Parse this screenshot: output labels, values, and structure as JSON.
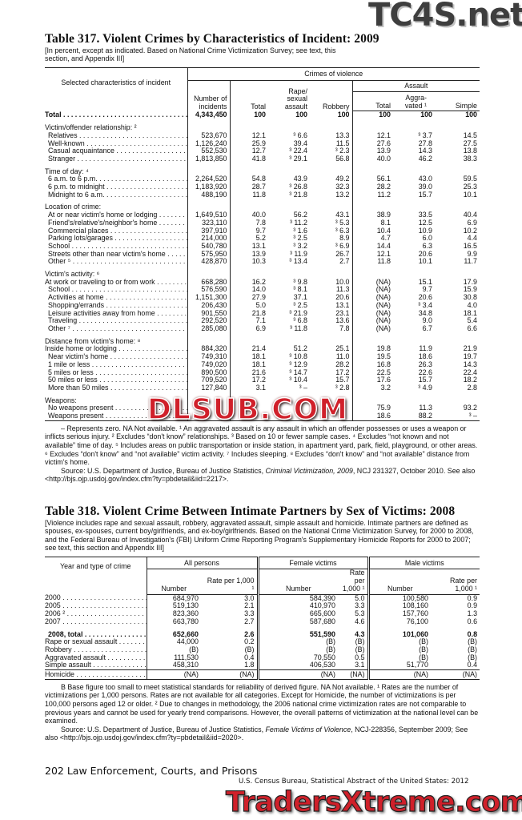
{
  "watermarks": {
    "top": "TC4S.net",
    "middle": "DLSUB.COM",
    "bottom": "TradersXtreme.com"
  },
  "table317": {
    "title": "Table 317. Violent Crimes by Characteristics of Incident: 2009",
    "headnote": "[In percent, except as indicated. Based on National Crime Victimization Survey; see text, this section, and Appendix III]",
    "headers": {
      "stub": "Selected characteristics of incident",
      "crimes_of_violence": "Crimes of violence",
      "assault": "Assault",
      "number_of_incidents": "Number of incidents",
      "total": "Total",
      "rape": "Rape/ sexual assault",
      "robbery": "Robbery",
      "assault_total": "Total",
      "aggravated": "Aggra- vated ¹",
      "simple": "Simple"
    },
    "rows": [
      {
        "label": "Total",
        "bold": true,
        "values": [
          "4,343,450",
          "100",
          "100",
          "100",
          "100",
          "100",
          "100"
        ]
      },
      {
        "gap": true
      },
      {
        "label": "Victim/offender relationship: ²",
        "heading": true
      },
      {
        "label": "Relatives",
        "indent": true,
        "values": [
          "523,670",
          "12.1",
          "³ 6.6",
          "13.3",
          "12.1",
          "³ 3.7",
          "14.5"
        ]
      },
      {
        "label": "Well-known",
        "indent": true,
        "values": [
          "1,126,240",
          "25.9",
          "39.4",
          "11.5",
          "27.6",
          "27.8",
          "27.5"
        ]
      },
      {
        "label": "Casual acquaintance",
        "indent": true,
        "values": [
          "552,530",
          "12.7",
          "³ 22.4",
          "³ 2.3",
          "13.9",
          "14.3",
          "13.8"
        ]
      },
      {
        "label": "Stranger",
        "indent": true,
        "values": [
          "1,813,850",
          "41.8",
          "³ 29.1",
          "56.8",
          "40.0",
          "46.2",
          "38.3"
        ]
      },
      {
        "gap": true
      },
      {
        "label": "Time of day: ⁴",
        "heading": true
      },
      {
        "label": "6 a.m. to 6 p.m.",
        "indent": true,
        "values": [
          "2,264,520",
          "54.8",
          "43.9",
          "49.2",
          "56.1",
          "43.0",
          "59.5"
        ]
      },
      {
        "label": "6 p.m. to midnight",
        "indent": true,
        "values": [
          "1,183,920",
          "28.7",
          "³ 26.8",
          "32.3",
          "28.2",
          "39.0",
          "25.3"
        ]
      },
      {
        "label": "Midnight to 6 a.m.",
        "indent": true,
        "values": [
          "488,190",
          "11.8",
          "³ 21.8",
          "13.2",
          "11.2",
          "15.7",
          "10.1"
        ]
      },
      {
        "gap": true
      },
      {
        "label": "Location of crime:",
        "heading": true
      },
      {
        "label": "At or near victim's home or lodging",
        "indent": true,
        "values": [
          "1,649,510",
          "40.0",
          "56.2",
          "43.1",
          "38.9",
          "33.5",
          "40.4"
        ]
      },
      {
        "label": "Friend's/relative's/neighbor's home",
        "indent": true,
        "values": [
          "323,110",
          "7.8",
          "³ 11.2",
          "³ 5.3",
          "8.1",
          "12.5",
          "6.9"
        ]
      },
      {
        "label": "Commercial places",
        "indent": true,
        "values": [
          "397,910",
          "9.7",
          "³ 1.6",
          "³ 6.3",
          "10.4",
          "10.9",
          "10.2"
        ]
      },
      {
        "label": "Parking lots/garages",
        "indent": true,
        "values": [
          "214,000",
          "5.2",
          "³ 2.5",
          "8.9",
          "4.7",
          "6.0",
          "4.4"
        ]
      },
      {
        "label": "School",
        "indent": true,
        "values": [
          "540,780",
          "13.1",
          "³ 3.2",
          "³ 6.9",
          "14.4",
          "6.3",
          "16.5"
        ]
      },
      {
        "label": "Streets other than near victim's home",
        "indent": true,
        "values": [
          "575,950",
          "13.9",
          "³ 11.9",
          "26.7",
          "12.1",
          "20.6",
          "9.9"
        ]
      },
      {
        "label": "Other ⁵",
        "indent": true,
        "values": [
          "428,870",
          "10.3",
          "³ 13.4",
          "2.7",
          "11.8",
          "10.1",
          "11.7"
        ]
      },
      {
        "gap": true
      },
      {
        "label": "Victim's activity: ⁶",
        "heading": true
      },
      {
        "label": "At work or traveling to or from work",
        "values": [
          "668,280",
          "16.2",
          "³ 9.8",
          "10.0",
          "(NA)",
          "15.1",
          "17.9"
        ]
      },
      {
        "label": "School",
        "indent": true,
        "values": [
          "576,590",
          "14.0",
          "³ 8.1",
          "11.3",
          "(NA)",
          "9.7",
          "15.9"
        ]
      },
      {
        "label": "Activities at home",
        "indent": true,
        "values": [
          "1,151,300",
          "27.9",
          "37.1",
          "20.6",
          "(NA)",
          "20.6",
          "30.8"
        ]
      },
      {
        "label": "Shopping/errands",
        "indent": true,
        "values": [
          "206,430",
          "5.0",
          "³ 2.5",
          "13.1",
          "(NA)",
          "³ 3.4",
          "4.0"
        ]
      },
      {
        "label": "Leisure activities away from home",
        "indent": true,
        "values": [
          "901,550",
          "21.8",
          "³ 21.9",
          "23.1",
          "(NA)",
          "34.8",
          "18.1"
        ]
      },
      {
        "label": "Traveling",
        "indent": true,
        "values": [
          "292,520",
          "7.1",
          "³ 6.8",
          "13.6",
          "(NA)",
          "9.0",
          "5.4"
        ]
      },
      {
        "label": "Other ⁷",
        "indent": true,
        "values": [
          "285,080",
          "6.9",
          "³ 11.8",
          "7.8",
          "(NA)",
          "6.7",
          "6.6"
        ]
      },
      {
        "gap": true
      },
      {
        "label": "Distance from victim's home: ⁸",
        "heading": true
      },
      {
        "label": "Inside home or lodging",
        "values": [
          "884,320",
          "21.4",
          "51.2",
          "25.1",
          "19.8",
          "11.9",
          "21.9"
        ]
      },
      {
        "label": "Near victim's home",
        "indent": true,
        "values": [
          "749,310",
          "18.1",
          "³ 10.8",
          "11.0",
          "19.5",
          "18.6",
          "19.7"
        ]
      },
      {
        "label": "1 mile or less",
        "indent": true,
        "values": [
          "749,020",
          "18.1",
          "³ 12.9",
          "28.2",
          "16.8",
          "26.3",
          "14.3"
        ]
      },
      {
        "label": "5 miles or less",
        "indent": true,
        "values": [
          "890,500",
          "21.6",
          "³ 14.7",
          "17.2",
          "22.5",
          "22.6",
          "22.4"
        ]
      },
      {
        "label": "50 miles or less",
        "indent": true,
        "values": [
          "709,520",
          "17.2",
          "³ 10.4",
          "15.7",
          "17.6",
          "15.7",
          "18.2"
        ]
      },
      {
        "label": "More than 50 miles",
        "indent": true,
        "values": [
          "127,840",
          "3.1",
          "³ –",
          "³ 2.8",
          "3.2",
          "³ 4.9",
          "2.8"
        ]
      },
      {
        "gap": true
      },
      {
        "label": "Weapons:",
        "heading": true
      },
      {
        "label": "No weapons present",
        "indent": true,
        "values": [
          "",
          "",
          "",
          "",
          "75.9",
          "11.3",
          "93.2"
        ]
      },
      {
        "label": "Weapons present",
        "indent": true,
        "values": [
          "",
          "",
          "",
          "",
          "18.6",
          "88.2",
          "³ –"
        ]
      }
    ],
    "footnotes": "– Represents zero. NA Not available. ¹ An aggravated assault is any assault in which an offender possesses or uses a weapon or inflicts serious injury. ² Excludes “don't know” relationships. ³ Based on 10 or fewer sample cases. ⁴ Excludes “not known and not available” time of day. ⁵ Includes areas on public transportation or inside station, in apartment yard, park, field, playground, or other areas. ⁶ Excludes “don't know” and “not available” victim activity. ⁷ Includes sleeping. ⁸ Excludes “don't know” and “not available” distance from victim's home.",
    "source_prefix": "Source: U.S. Department of Justice, Bureau of Justice Statistics, ",
    "source_title": "Criminal Victimization, 2009",
    "source_suffix": ", NCJ 231327, October 2010. See also <http://bjs.ojp.usdoj.gov/index.cfm?ty=pbdetail&iid=2217>."
  },
  "table318": {
    "title": "Table 318. Violent Crime Between Intimate Partners by Sex of Victims: 2008",
    "headnote": "[Violence includes rape and sexual assault, robbery, aggravated assault, simple assault and homicide. Intimate partners are defined as spouses, ex-spouses, current boy/girlfriends, and ex-boy/girlfriends. Based on the National Crime Victimization Survey, for 2000 to 2008, and the Federal Bureau of Investigation's (FBI) Uniform Crime Reporting Program's Supplementary Homicide Reports for 2000 to 2007; see text, this section and Appendix III]",
    "headers": {
      "stub": "Year and type of crime",
      "all_persons": "All persons",
      "female": "Female victims",
      "male": "Male victims",
      "number": "Number",
      "rate": "Rate per 1,000 ¹"
    },
    "rows": [
      {
        "label": "2000",
        "values": [
          "684,970",
          "3.0",
          "584,390",
          "5.0",
          "100,580",
          "0.9"
        ]
      },
      {
        "label": "2005",
        "values": [
          "519,130",
          "2.1",
          "410,970",
          "3.3",
          "108,160",
          "0.9"
        ]
      },
      {
        "label": "2006 ²",
        "values": [
          "823,360",
          "3.3",
          "665,600",
          "5.3",
          "157,760",
          "1.3"
        ]
      },
      {
        "label": "2007",
        "values": [
          "663,780",
          "2.7",
          "587,680",
          "4.6",
          "76,100",
          "0.6"
        ]
      },
      {
        "gap": true
      },
      {
        "label": "2008, total",
        "bold": true,
        "indent": true,
        "values": [
          "652,660",
          "2.6",
          "551,590",
          "4.3",
          "101,060",
          "0.8"
        ]
      },
      {
        "label": "Rape or sexual assault",
        "values": [
          "44,000",
          "0.2",
          "(B)",
          "(B)",
          "(B)",
          "(B)"
        ]
      },
      {
        "label": "Robbery",
        "values": [
          "(B)",
          "(B)",
          "(B)",
          "(B)",
          "(B)",
          "(B)"
        ]
      },
      {
        "label": "Aggravated assault",
        "values": [
          "111,530",
          "0.4",
          "70,550",
          "0.5",
          "(B)",
          "(B)"
        ]
      },
      {
        "label": "Simple assault",
        "values": [
          "458,310",
          "1.8",
          "406,530",
          "3.1",
          "51,770",
          "0.4"
        ]
      },
      {
        "label": "Homicide",
        "topline": true,
        "values": [
          "(NA)",
          "(NA)",
          "(NA)",
          "(NA)",
          "(NA)",
          "(NA)"
        ]
      }
    ],
    "footnotes": "B Base figure too small to meet statistical standards for reliability of derived figure. NA Not available. ¹ Rates are the number of victimizations per 1,000 persons. Rates are not available for all categories. Except for Homicide, the number of victimizations is per 100,000 persons aged 12 or older. ² Due to changes in methodology, the 2006 national crime victimization rates are not comparable to previous  years and cannot be used for yearly trend comparisons. However, the overall patterns of victimization at the national level can be examined.",
    "source_prefix": "Source: U.S. Department of Justice, Bureau of Justice Statistics, ",
    "source_title": "Female Victims of Violence",
    "source_suffix": ", NCJ-228356, September 2009; See also <http://bjs.ojp.usdoj.gov/index.cfm?ty=pbdetail&iid=2020>."
  },
  "footer": {
    "page_line": "202  Law Enforcement, Courts, and Prisons",
    "census_line": "U.S. Census Bureau, Statistical Abstract of the United States: 2012"
  }
}
